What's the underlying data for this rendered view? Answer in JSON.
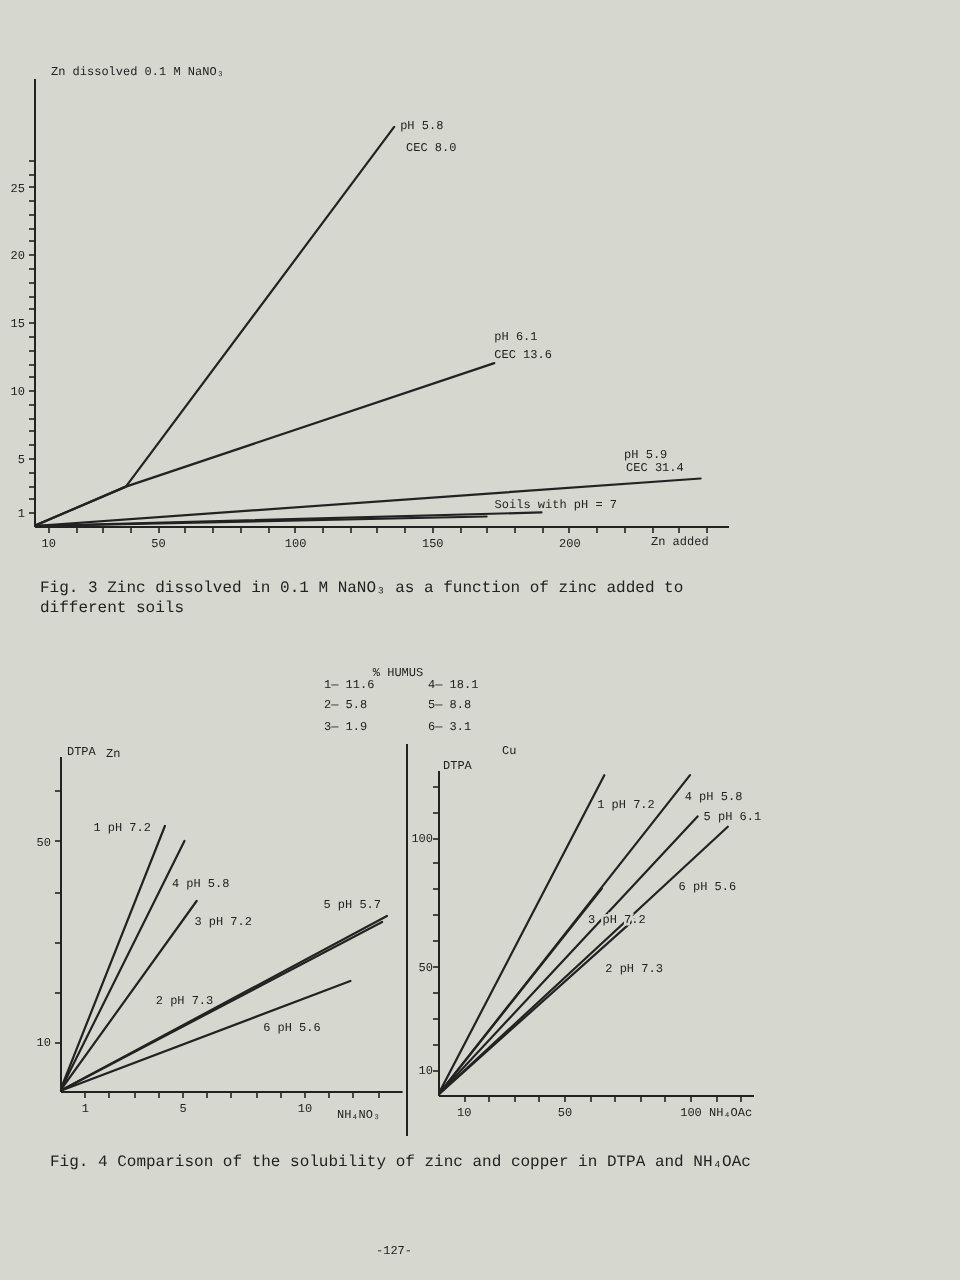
{
  "chart_data": [
    {
      "type": "line",
      "ylabel": "Zn dissolved 0.1 M NaNO₃",
      "xlabel": "Zn added",
      "xlim": [
        5,
        258
      ],
      "ylim": [
        0,
        33
      ],
      "xticks": [
        10,
        {
          "value": 20,
          "label": null
        },
        {
          "value": 30,
          "label": null
        },
        {
          "value": 40,
          "label": null
        },
        50,
        {
          "value": 60,
          "label": null
        },
        {
          "value": 70,
          "label": null
        },
        {
          "value": 80,
          "label": null
        },
        {
          "value": 90,
          "label": null
        },
        100,
        {
          "value": 110,
          "label": null
        },
        {
          "value": 120,
          "label": null
        },
        {
          "value": 130,
          "label": null
        },
        {
          "value": 140,
          "label": null
        },
        150,
        {
          "value": 160,
          "label": null
        },
        {
          "value": 170,
          "label": null
        },
        {
          "value": 180,
          "label": null
        },
        {
          "value": 190,
          "label": null
        },
        200,
        {
          "value": 210,
          "label": null
        },
        {
          "value": 220,
          "label": null
        },
        {
          "value": 230,
          "label": null
        },
        {
          "value": 240,
          "label": null
        },
        {
          "value": 250,
          "label": null
        }
      ],
      "yticks": [
        1,
        {
          "value": 2,
          "label": null
        },
        {
          "value": 3,
          "label": null
        },
        {
          "value": 4,
          "label": null
        },
        5,
        {
          "value": 6,
          "label": null
        },
        {
          "value": 7,
          "label": null
        },
        {
          "value": 8,
          "label": null
        },
        {
          "value": 9,
          "label": null
        },
        10,
        {
          "value": 11,
          "label": null
        },
        {
          "value": 12,
          "label": null
        },
        {
          "value": 13,
          "label": null
        },
        {
          "value": 14,
          "label": null
        },
        15,
        {
          "value": 16,
          "label": null
        },
        {
          "value": 17,
          "label": null
        },
        {
          "value": 18,
          "label": null
        },
        {
          "value": 19,
          "label": null
        },
        20,
        {
          "value": 21,
          "label": null
        },
        {
          "value": 22,
          "label": null
        },
        {
          "value": 23,
          "label": null
        },
        {
          "value": 24,
          "label": null
        },
        25,
        {
          "value": 26,
          "label": null
        },
        {
          "value": 27,
          "label": null
        }
      ],
      "series": [
        {
          "color": "#222222",
          "x": [
            5,
            38.5,
            136.3
          ],
          "values": [
            0,
            2.9,
            29.4
          ]
        },
        {
          "color": "#222222",
          "x": [
            5,
            38.5,
            172.8
          ],
          "values": [
            0,
            2.9,
            12.0
          ]
        },
        {
          "color": "#222222",
          "x": [
            5,
            248
          ],
          "values": [
            0,
            3.5
          ]
        },
        {
          "color": "#222222",
          "x": [
            5,
            190
          ],
          "values": [
            0,
            1.0
          ]
        },
        {
          "color": "#222222",
          "x": [
            5,
            170
          ],
          "values": [
            0,
            0.7
          ]
        }
      ],
      "annotations": [
        {
          "text": "pH 5.8",
          "x": 136.3,
          "y": 29.4
        },
        {
          "text": "CEC 8.0",
          "x": 130.4,
          "y": 27.8
        },
        {
          "text": "pH 6.1",
          "x": 172.8,
          "y": 12.0
        },
        {
          "text": "CEC 13.6",
          "x": 172.8,
          "y": 12.0
        },
        {
          "text": "pH 5.9",
          "x": 211,
          "y": 3.0
        },
        {
          "text": "CEC 31.4",
          "x": 211,
          "y": 3.0
        },
        {
          "text": "Soils with pH = 7",
          "x": 170,
          "y": 0.9
        },
        "Fig. 3 Zinc dissolved in 0.1 M NaNO₃ as a function of zinc added to different soils"
      ]
    },
    {
      "type": "other",
      "title": "% HUMUS",
      "annotations": [
        "1— 11.6",
        "4— 18.1",
        "2— 5.8",
        "5— 8.8",
        "3— 1.9",
        "6— 3.1"
      ]
    },
    {
      "type": "line",
      "title": "Zn",
      "ylabel": "DTPA",
      "xlabel": "NH₄NO₃",
      "xlim": [
        0,
        14.0
      ],
      "ylim": [
        0,
        67
      ],
      "xticks": [
        1,
        {
          "value": 2,
          "label": null
        },
        {
          "value": 3,
          "label": null
        },
        {
          "value": 4,
          "label": null
        },
        5,
        {
          "value": 6,
          "label": null
        },
        {
          "value": 7,
          "label": null
        },
        {
          "value": 8,
          "label": null
        },
        {
          "value": 9,
          "label": null
        },
        10,
        {
          "value": 11,
          "label": null
        },
        {
          "value": 12,
          "label": null
        },
        {
          "value": 13,
          "label": null
        }
      ],
      "yticks": [
        10,
        {
          "value": 20,
          "label": null
        },
        {
          "value": 30,
          "label": null
        },
        {
          "value": 40,
          "label": null
        },
        50,
        {
          "value": 60,
          "label": null
        }
      ],
      "series": [
        {
          "color": "#222222",
          "x": [
            0,
            4.3
          ],
          "values": [
            0,
            53
          ]
        },
        {
          "color": "#222222",
          "x": [
            0,
            13.2
          ],
          "values": [
            0,
            33.8
          ]
        },
        {
          "color": "#222222",
          "x": [
            0,
            5.6
          ],
          "values": [
            0,
            38
          ]
        },
        {
          "color": "#222222",
          "x": [
            0,
            5.1
          ],
          "values": [
            0,
            50
          ]
        },
        {
          "color": "#222222",
          "x": [
            0,
            13.4
          ],
          "values": [
            0,
            35
          ]
        },
        {
          "color": "#222222",
          "x": [
            0,
            11.9
          ],
          "values": [
            0,
            22
          ]
        }
      ],
      "annotations": [
        {
          "text": "1 pH 7.2",
          "x": 3.83,
          "y": 47.2
        },
        {
          "text": "4 pH 5.8",
          "x": 3.85,
          "y": 37.7
        },
        {
          "text": "3 pH 7.2",
          "x": 4.77,
          "y": 32.4
        },
        {
          "text": "5 pH 5.7",
          "x": 13.4,
          "y": 35
        },
        {
          "text": "2 pH 7.3",
          "x": 7.1,
          "y": 18.2
        },
        {
          "text": "6 pH 5.6",
          "x": 8.0,
          "y": 14.8
        },
        "Fig. 4 Comparison of the solubility of zinc and copper in DTPA and NH₄OAc"
      ]
    },
    {
      "type": "line",
      "title": "Cu",
      "ylabel": "DTPA",
      "xlabel": "NH₄OAc",
      "xlim": [
        0,
        125
      ],
      "ylim": [
        0,
        126
      ],
      "xticks": [
        10,
        {
          "value": 20,
          "label": null
        },
        {
          "value": 30,
          "label": null
        },
        {
          "value": 40,
          "label": null
        },
        50,
        {
          "value": 60,
          "label": null
        },
        {
          "value": 70,
          "label": null
        },
        {
          "value": 80,
          "label": null
        },
        {
          "value": 90,
          "label": null
        },
        100,
        {
          "value": 110,
          "label": null
        },
        {
          "value": 120,
          "label": null
        }
      ],
      "yticks": [
        10,
        {
          "value": 20,
          "label": null
        },
        {
          "value": 30,
          "label": null
        },
        {
          "value": 40,
          "label": null
        },
        50,
        {
          "value": 60,
          "label": null
        },
        {
          "value": 70,
          "label": null
        },
        {
          "value": 80,
          "label": null
        },
        {
          "value": 90,
          "label": null
        },
        100,
        {
          "value": 110,
          "label": null
        },
        {
          "value": 120,
          "label": null
        }
      ],
      "series": [
        {
          "color": "#222222",
          "x": [
            0,
            66
          ],
          "values": [
            0,
            124
          ]
        },
        {
          "color": "#222222",
          "x": [
            0,
            77.8
          ],
          "values": [
            0,
            68
          ]
        },
        {
          "color": "#222222",
          "x": [
            0,
            65
          ],
          "values": [
            0,
            80
          ]
        },
        {
          "color": "#222222",
          "x": [
            0,
            100
          ],
          "values": [
            0,
            124
          ]
        },
        {
          "color": "#222222",
          "x": [
            0,
            103
          ],
          "values": [
            0,
            108
          ]
        },
        {
          "color": "#222222",
          "x": [
            0,
            115
          ],
          "values": [
            0,
            104
          ]
        }
      ],
      "annotations": [
        {
          "text": "1 pH 7.2",
          "x": 57.6,
          "y": 108.2
        },
        {
          "text": "4 pH 5.8",
          "x": 86,
          "y": 106.6
        },
        {
          "text": "5 pH 6.1",
          "x": 103,
          "y": 108
        },
        {
          "text": "6 pH 5.6",
          "x": 90.7,
          "y": 82
        },
        {
          "text": "3 pH 7.2",
          "x": 54,
          "y": 66.5
        },
        {
          "text": "2 pH 7.3",
          "x": 63.2,
          "y": 55.3
        },
        "-127-"
      ]
    }
  ]
}
